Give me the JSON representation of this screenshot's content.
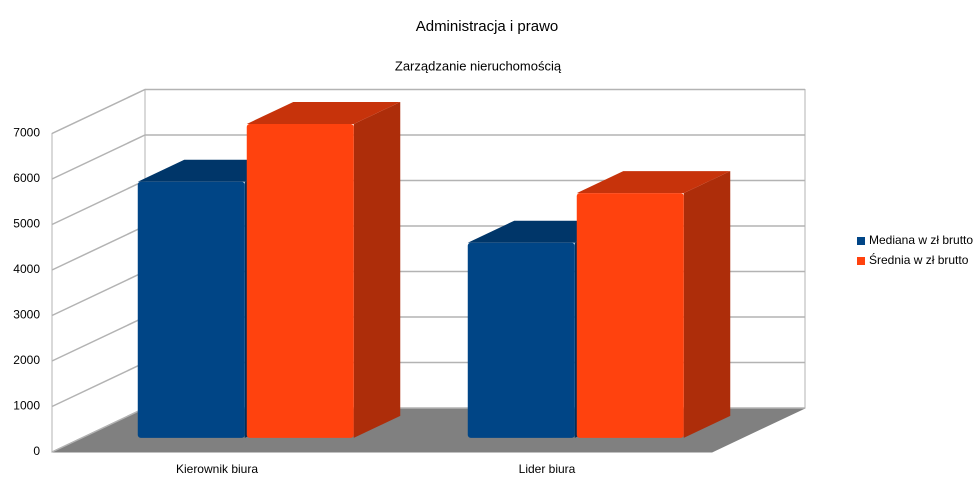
{
  "chart_data": {
    "type": "bar3d",
    "title": "Administracja i prawo",
    "subtitle": "Zarządzanie nieruchomością",
    "categories": [
      "Kierownik biura",
      "Lider biura"
    ],
    "series": [
      {
        "name": "Mediana w zł brutto",
        "color": "#004586",
        "values": [
          5630,
          4290
        ]
      },
      {
        "name": "Średnia w zł brutto",
        "color": "#ff420e",
        "values": [
          6900,
          5380
        ]
      }
    ],
    "ylim": [
      0,
      7000
    ],
    "yticks": [
      0,
      1000,
      2000,
      3000,
      4000,
      5000,
      6000,
      7000
    ],
    "grid": true,
    "legend": "right"
  }
}
